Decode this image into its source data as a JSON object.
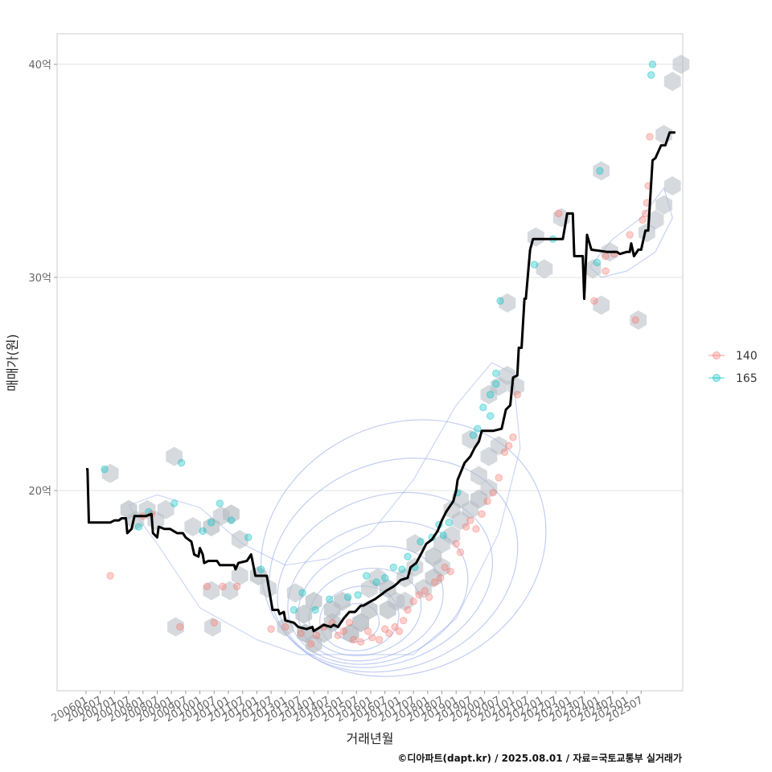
{
  "chart_data": {
    "type": "scatter",
    "title": "",
    "xlabel": "거래년월",
    "ylabel": "매매가(원)",
    "caption": "©디아파트(dapt.kr) / 2025.08.01 / 자료=국토교통부 실거래가",
    "x_ticks": [
      "200601",
      "200607",
      "200701",
      "200707",
      "200801",
      "200807",
      "200901",
      "200907",
      "201001",
      "201007",
      "201101",
      "201107",
      "201201",
      "201207",
      "201301",
      "201307",
      "201401",
      "201407",
      "201501",
      "201507",
      "201601",
      "201607",
      "201701",
      "201707",
      "201801",
      "201807",
      "201901",
      "201907",
      "202001",
      "202007",
      "202101",
      "202107",
      "202201",
      "202207",
      "202301",
      "202307",
      "202401",
      "202407",
      "202501",
      "202507"
    ],
    "y_ticks": [
      {
        "value": 20,
        "label": "20억"
      },
      {
        "value": 30,
        "label": "30억"
      },
      {
        "value": 40,
        "label": "40억"
      }
    ],
    "ylim": [
      10,
      41.5
    ],
    "xlim": [
      -0.1,
      39.6
    ],
    "grid": true,
    "legend_position": "right",
    "colors": {
      "140": "#F8766D",
      "165": "#00BFC4",
      "hex": "#B4BCC2",
      "contour": "#8FA6E8",
      "trend": "#000000"
    },
    "series": [
      {
        "name": "140",
        "points": [
          [
            1.7,
            16.0
          ],
          [
            4,
            18.8
          ],
          [
            4.6,
            18.9
          ],
          [
            6.6,
            13.6
          ],
          [
            8.5,
            15.5
          ],
          [
            9,
            13.8
          ],
          [
            9.6,
            15.5
          ],
          [
            10.6,
            15.5
          ],
          [
            13,
            13.5
          ],
          [
            14,
            13.6
          ],
          [
            15.1,
            13.3
          ],
          [
            15.8,
            12.8
          ],
          [
            16.2,
            13.2
          ],
          [
            16.7,
            13.6
          ],
          [
            17.3,
            13.8
          ],
          [
            17.7,
            13.2
          ],
          [
            18.1,
            13.4
          ],
          [
            18.5,
            13.8
          ],
          [
            18.8,
            13.0
          ],
          [
            19.3,
            12.9
          ],
          [
            19.8,
            13.4
          ],
          [
            20.1,
            13.1
          ],
          [
            20.6,
            13.0
          ],
          [
            21,
            13.5
          ],
          [
            21.3,
            13.3
          ],
          [
            21.7,
            13.6
          ],
          [
            22,
            13.4
          ],
          [
            22.3,
            13.9
          ],
          [
            22.6,
            14.4
          ],
          [
            23,
            14.8
          ],
          [
            23.4,
            15.1
          ],
          [
            23.8,
            15.3
          ],
          [
            24.1,
            15.0
          ],
          [
            24.5,
            15.7
          ],
          [
            24.9,
            15.9
          ],
          [
            25.2,
            16.4
          ],
          [
            25.6,
            16.2
          ],
          [
            26,
            17.5
          ],
          [
            26.3,
            17.1
          ],
          [
            26.7,
            18.3
          ],
          [
            27,
            18.6
          ],
          [
            27.4,
            18.2
          ],
          [
            27.8,
            18.9
          ],
          [
            28.2,
            19.5
          ],
          [
            28.6,
            19.9
          ],
          [
            29,
            20.6
          ],
          [
            29.4,
            21.8
          ],
          [
            29.7,
            22.1
          ],
          [
            30,
            22.5
          ],
          [
            30.3,
            24.5
          ],
          [
            33.2,
            33.0
          ],
          [
            35.7,
            28.9
          ],
          [
            36.5,
            30.3
          ],
          [
            36.5,
            31.0
          ],
          [
            37.1,
            31.1
          ],
          [
            38.2,
            32.0
          ],
          [
            38.6,
            28.0
          ],
          [
            39.1,
            32.7
          ],
          [
            39.3,
            33.0
          ],
          [
            39.4,
            33.5
          ],
          [
            39.5,
            34.3
          ],
          [
            39.6,
            36.6
          ]
        ]
      },
      {
        "name": "165",
        "points": [
          [
            1.3,
            21.0
          ],
          [
            3.7,
            18.3
          ],
          [
            4.4,
            19.0
          ],
          [
            6.2,
            19.4
          ],
          [
            6.7,
            21.3
          ],
          [
            8.2,
            18.1
          ],
          [
            8.8,
            18.5
          ],
          [
            9.4,
            19.4
          ],
          [
            10.2,
            18.6
          ],
          [
            11.4,
            17.8
          ],
          [
            12.3,
            16.3
          ],
          [
            14.6,
            14.4
          ],
          [
            15.2,
            15.2
          ],
          [
            16.1,
            14.4
          ],
          [
            17.1,
            14.9
          ],
          [
            18.4,
            15.0
          ],
          [
            19.1,
            15.1
          ],
          [
            19.7,
            16.0
          ],
          [
            20.4,
            15.7
          ],
          [
            21,
            15.9
          ],
          [
            21.6,
            16.4
          ],
          [
            22.2,
            16.3
          ],
          [
            22.6,
            16.9
          ],
          [
            23.1,
            16.4
          ],
          [
            23.5,
            17.6
          ],
          [
            24.3,
            17.8
          ],
          [
            24.8,
            18.4
          ],
          [
            25.1,
            17.9
          ],
          [
            25.5,
            18.5
          ],
          [
            26.1,
            19.9
          ],
          [
            27.2,
            22.6
          ],
          [
            27.5,
            22.9
          ],
          [
            27.9,
            23.9
          ],
          [
            28.4,
            23.5
          ],
          [
            28.4,
            24.5
          ],
          [
            28.8,
            25.0
          ],
          [
            28.8,
            25.5
          ],
          [
            29.1,
            28.9
          ],
          [
            31.5,
            30.6
          ],
          [
            32.8,
            31.8
          ],
          [
            36.1,
            35.0
          ],
          [
            35.9,
            30.7
          ],
          [
            39.7,
            39.5
          ],
          [
            39.8,
            40.0
          ]
        ]
      }
    ],
    "trend_line": [
      [
        0,
        21.0
      ],
      [
        0.1,
        21.0
      ],
      [
        0.2,
        18.5
      ],
      [
        1.7,
        18.5
      ],
      [
        2,
        18.6
      ],
      [
        2.3,
        18.6
      ],
      [
        2.5,
        18.7
      ],
      [
        2.8,
        18.7
      ],
      [
        2.9,
        18.0
      ],
      [
        3.2,
        18.2
      ],
      [
        3.4,
        18.8
      ],
      [
        4.2,
        18.8
      ],
      [
        4.6,
        18.9
      ],
      [
        4.7,
        18.0
      ],
      [
        5,
        17.8
      ],
      [
        5.1,
        18.3
      ],
      [
        5.5,
        18.2
      ],
      [
        5.9,
        18.2
      ],
      [
        6.4,
        18.0
      ],
      [
        6.8,
        18.0
      ],
      [
        7,
        17.8
      ],
      [
        7.4,
        17.6
      ],
      [
        7.6,
        17.0
      ],
      [
        7.9,
        16.9
      ],
      [
        8,
        17.3
      ],
      [
        8.2,
        17.0
      ],
      [
        8.3,
        16.6
      ],
      [
        8.6,
        16.7
      ],
      [
        9.2,
        16.7
      ],
      [
        9.4,
        16.5
      ],
      [
        9.9,
        16.5
      ],
      [
        10.4,
        16.5
      ],
      [
        10.5,
        16.3
      ],
      [
        10.7,
        16.6
      ],
      [
        11.3,
        16.7
      ],
      [
        11.6,
        17.0
      ],
      [
        11.9,
        16.0
      ],
      [
        12.7,
        16.0
      ],
      [
        13.1,
        14.4
      ],
      [
        13.5,
        14.4
      ],
      [
        13.6,
        14.2
      ],
      [
        13.9,
        14.3
      ],
      [
        14,
        13.9
      ],
      [
        14.6,
        13.8
      ],
      [
        14.9,
        13.6
      ],
      [
        15.5,
        13.5
      ],
      [
        15.9,
        13.6
      ],
      [
        16,
        13.4
      ],
      [
        16.7,
        13.7
      ],
      [
        17.2,
        13.6
      ],
      [
        17.4,
        13.7
      ],
      [
        17.7,
        13.6
      ],
      [
        18.1,
        14.0
      ],
      [
        18.5,
        14.3
      ],
      [
        18.9,
        14.3
      ],
      [
        19.3,
        14.6
      ],
      [
        19.5,
        14.6
      ],
      [
        20,
        14.8
      ],
      [
        20.3,
        14.9
      ],
      [
        20.7,
        15.1
      ],
      [
        21.1,
        15.3
      ],
      [
        21.6,
        15.5
      ],
      [
        21.8,
        15.6
      ],
      [
        22.1,
        15.8
      ],
      [
        22.6,
        15.9
      ],
      [
        22.8,
        16.4
      ],
      [
        23.2,
        16.6
      ],
      [
        23.6,
        17.1
      ],
      [
        23.9,
        17.5
      ],
      [
        24.3,
        17.7
      ],
      [
        24.7,
        18.1
      ],
      [
        25,
        18.6
      ],
      [
        25.3,
        19.0
      ],
      [
        25.5,
        19.2
      ],
      [
        25.8,
        19.5
      ],
      [
        26,
        20.0
      ],
      [
        26.1,
        20.5
      ],
      [
        26.6,
        21.3
      ],
      [
        27,
        21.6
      ],
      [
        27.3,
        22.0
      ],
      [
        27.6,
        22.3
      ],
      [
        27.8,
        22.8
      ],
      [
        28.1,
        22.8
      ],
      [
        28.6,
        22.8
      ],
      [
        29.2,
        22.9
      ],
      [
        29.5,
        23.8
      ],
      [
        29.8,
        24.0
      ],
      [
        30,
        25.3
      ],
      [
        30.3,
        25.4
      ],
      [
        30.4,
        26.7
      ],
      [
        30.6,
        26.7
      ],
      [
        30.8,
        29.0
      ],
      [
        30.9,
        29.0
      ],
      [
        31.2,
        31.3
      ],
      [
        31.4,
        31.8
      ],
      [
        32,
        31.8
      ],
      [
        32.8,
        31.8
      ],
      [
        33.5,
        31.8
      ],
      [
        33.8,
        33.0
      ],
      [
        34.2,
        33.0
      ],
      [
        34.3,
        31.0
      ],
      [
        34.7,
        31.0
      ],
      [
        34.9,
        31.0
      ],
      [
        35,
        29.0
      ],
      [
        35.2,
        32.0
      ],
      [
        35.5,
        31.3
      ],
      [
        36.6,
        31.2
      ],
      [
        37.3,
        31.2
      ],
      [
        37.5,
        31.1
      ],
      [
        38,
        31.2
      ],
      [
        38.2,
        31.2
      ],
      [
        38.3,
        31.6
      ],
      [
        38.5,
        31.0
      ],
      [
        38.8,
        31.3
      ],
      [
        39,
        31.3
      ],
      [
        39.3,
        32.2
      ],
      [
        39.5,
        32.2
      ],
      [
        39.8,
        35.5
      ],
      [
        40,
        35.6
      ],
      [
        40.4,
        36.2
      ],
      [
        40.7,
        36.2
      ],
      [
        41,
        36.8
      ],
      [
        41.4,
        36.8
      ]
    ],
    "hex_bins": [
      [
        1.7,
        20.8,
        1
      ],
      [
        3,
        19.1,
        2
      ],
      [
        3.5,
        18.6,
        1
      ],
      [
        4.3,
        19.1,
        1
      ],
      [
        5.6,
        19.1,
        1
      ],
      [
        4.9,
        18.6,
        1
      ],
      [
        6.2,
        21.6,
        1
      ],
      [
        7.5,
        18.3,
        1
      ],
      [
        8.8,
        18.3,
        2
      ],
      [
        9.5,
        18.8,
        1
      ],
      [
        10.2,
        18.9,
        2
      ],
      [
        10.8,
        17.7,
        1
      ],
      [
        8.8,
        15.3,
        1
      ],
      [
        10.1,
        15.3,
        1
      ],
      [
        10.8,
        16.0,
        1
      ],
      [
        12.1,
        16.0,
        2
      ],
      [
        12.8,
        15.4,
        1
      ],
      [
        6.3,
        13.6,
        1
      ],
      [
        8.9,
        13.6,
        1
      ],
      [
        14.7,
        15.2,
        1
      ],
      [
        14.0,
        13.6,
        1
      ],
      [
        15.3,
        14.2,
        2
      ],
      [
        16.0,
        14.8,
        2
      ],
      [
        15.4,
        13.3,
        3
      ],
      [
        16.0,
        12.8,
        2
      ],
      [
        16.7,
        13.3,
        2
      ],
      [
        17.3,
        13.8,
        2
      ],
      [
        17.3,
        14.4,
        2
      ],
      [
        18.0,
        14.8,
        2
      ],
      [
        18.6,
        13.3,
        3
      ],
      [
        19.3,
        13.8,
        3
      ],
      [
        19.9,
        14.4,
        2
      ],
      [
        19.9,
        15.4,
        1
      ],
      [
        20.5,
        15.9,
        1
      ],
      [
        21.2,
        15.4,
        2
      ],
      [
        21.2,
        14.4,
        2
      ],
      [
        21.8,
        14.8,
        1
      ],
      [
        22.4,
        15.9,
        1
      ],
      [
        23.1,
        16.4,
        1
      ],
      [
        23.1,
        17.5,
        1
      ],
      [
        22.4,
        14.8,
        1
      ],
      [
        23.7,
        15.4,
        1
      ],
      [
        24.4,
        15.9,
        2
      ],
      [
        24.4,
        16.9,
        2
      ],
      [
        25.0,
        16.4,
        1
      ],
      [
        25.0,
        17.5,
        1
      ],
      [
        25.7,
        17.9,
        1
      ],
      [
        25.7,
        19.1,
        1
      ],
      [
        26.3,
        18.6,
        1
      ],
      [
        26.3,
        19.6,
        1
      ],
      [
        27.0,
        19.1,
        1
      ],
      [
        27.6,
        19.6,
        2
      ],
      [
        27.6,
        20.7,
        1
      ],
      [
        28.3,
        21.6,
        1
      ],
      [
        28.3,
        20.1,
        1
      ],
      [
        29.0,
        22.1,
        1
      ],
      [
        28.3,
        24.5,
        1
      ],
      [
        29.0,
        24.9,
        1
      ],
      [
        29.6,
        25.4,
        1
      ],
      [
        30.2,
        24.9,
        1
      ],
      [
        27.0,
        22.4,
        1
      ],
      [
        29.6,
        28.8,
        1
      ],
      [
        31.6,
        31.9,
        1
      ],
      [
        32.2,
        30.4,
        1
      ],
      [
        33.4,
        32.8,
        1
      ],
      [
        36.2,
        35.0,
        1
      ],
      [
        35.6,
        30.4,
        1
      ],
      [
        36.2,
        28.7,
        1
      ],
      [
        36.8,
        31.2,
        1
      ],
      [
        38.8,
        28.0,
        1
      ],
      [
        39.4,
        32.1,
        1
      ],
      [
        40.0,
        32.7,
        1
      ],
      [
        40.6,
        33.4,
        1
      ],
      [
        41.2,
        34.3,
        1
      ],
      [
        40.6,
        36.7,
        1
      ],
      [
        41.2,
        39.2,
        1
      ],
      [
        41.8,
        40.0,
        1
      ]
    ]
  }
}
